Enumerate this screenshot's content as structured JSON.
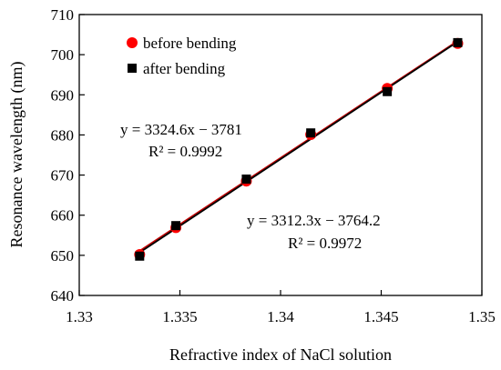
{
  "chart_data": {
    "type": "scatter",
    "xlabel": "Refractive index of NaCl solution",
    "ylabel": "Resonance wavelength (nm)",
    "xlim": [
      1.33,
      1.35
    ],
    "ylim": [
      640,
      710
    ],
    "x_ticks": [
      1.33,
      1.335,
      1.34,
      1.345,
      1.35
    ],
    "x_tick_labels": [
      "1.33",
      "1.335",
      "1.34",
      "1.345",
      "1.35"
    ],
    "y_ticks": [
      640,
      650,
      660,
      670,
      680,
      690,
      700,
      710
    ],
    "y_tick_labels": [
      "640",
      "650",
      "660",
      "670",
      "680",
      "690",
      "700",
      "710"
    ],
    "grid": false,
    "legend_position": "top-left",
    "series": [
      {
        "name": "before bending",
        "marker": "circle",
        "color": "#ff0000",
        "x": [
          1.333,
          1.3348,
          1.3383,
          1.3415,
          1.3453,
          1.3488
        ],
        "y": [
          650.2,
          656.9,
          668.5,
          680.1,
          691.6,
          702.8
        ],
        "trendline": {
          "slope": 3312.3,
          "intercept": -3764.2,
          "color": "#c00000"
        }
      },
      {
        "name": "after bending",
        "marker": "square",
        "color": "#000000",
        "x": [
          1.333,
          1.3348,
          1.3383,
          1.3415,
          1.3453,
          1.3488
        ],
        "y": [
          649.8,
          657.4,
          669.0,
          680.5,
          690.8,
          703.0
        ],
        "trendline": {
          "slope": 3324.6,
          "intercept": -3781,
          "color": "#000000"
        }
      }
    ],
    "annotations": [
      {
        "line1": "y = 3324.6x − 3781",
        "line2": "R² = 0.9992"
      },
      {
        "line1": "y = 3312.3x − 3764.2",
        "line2": "R² = 0.9972"
      }
    ]
  }
}
